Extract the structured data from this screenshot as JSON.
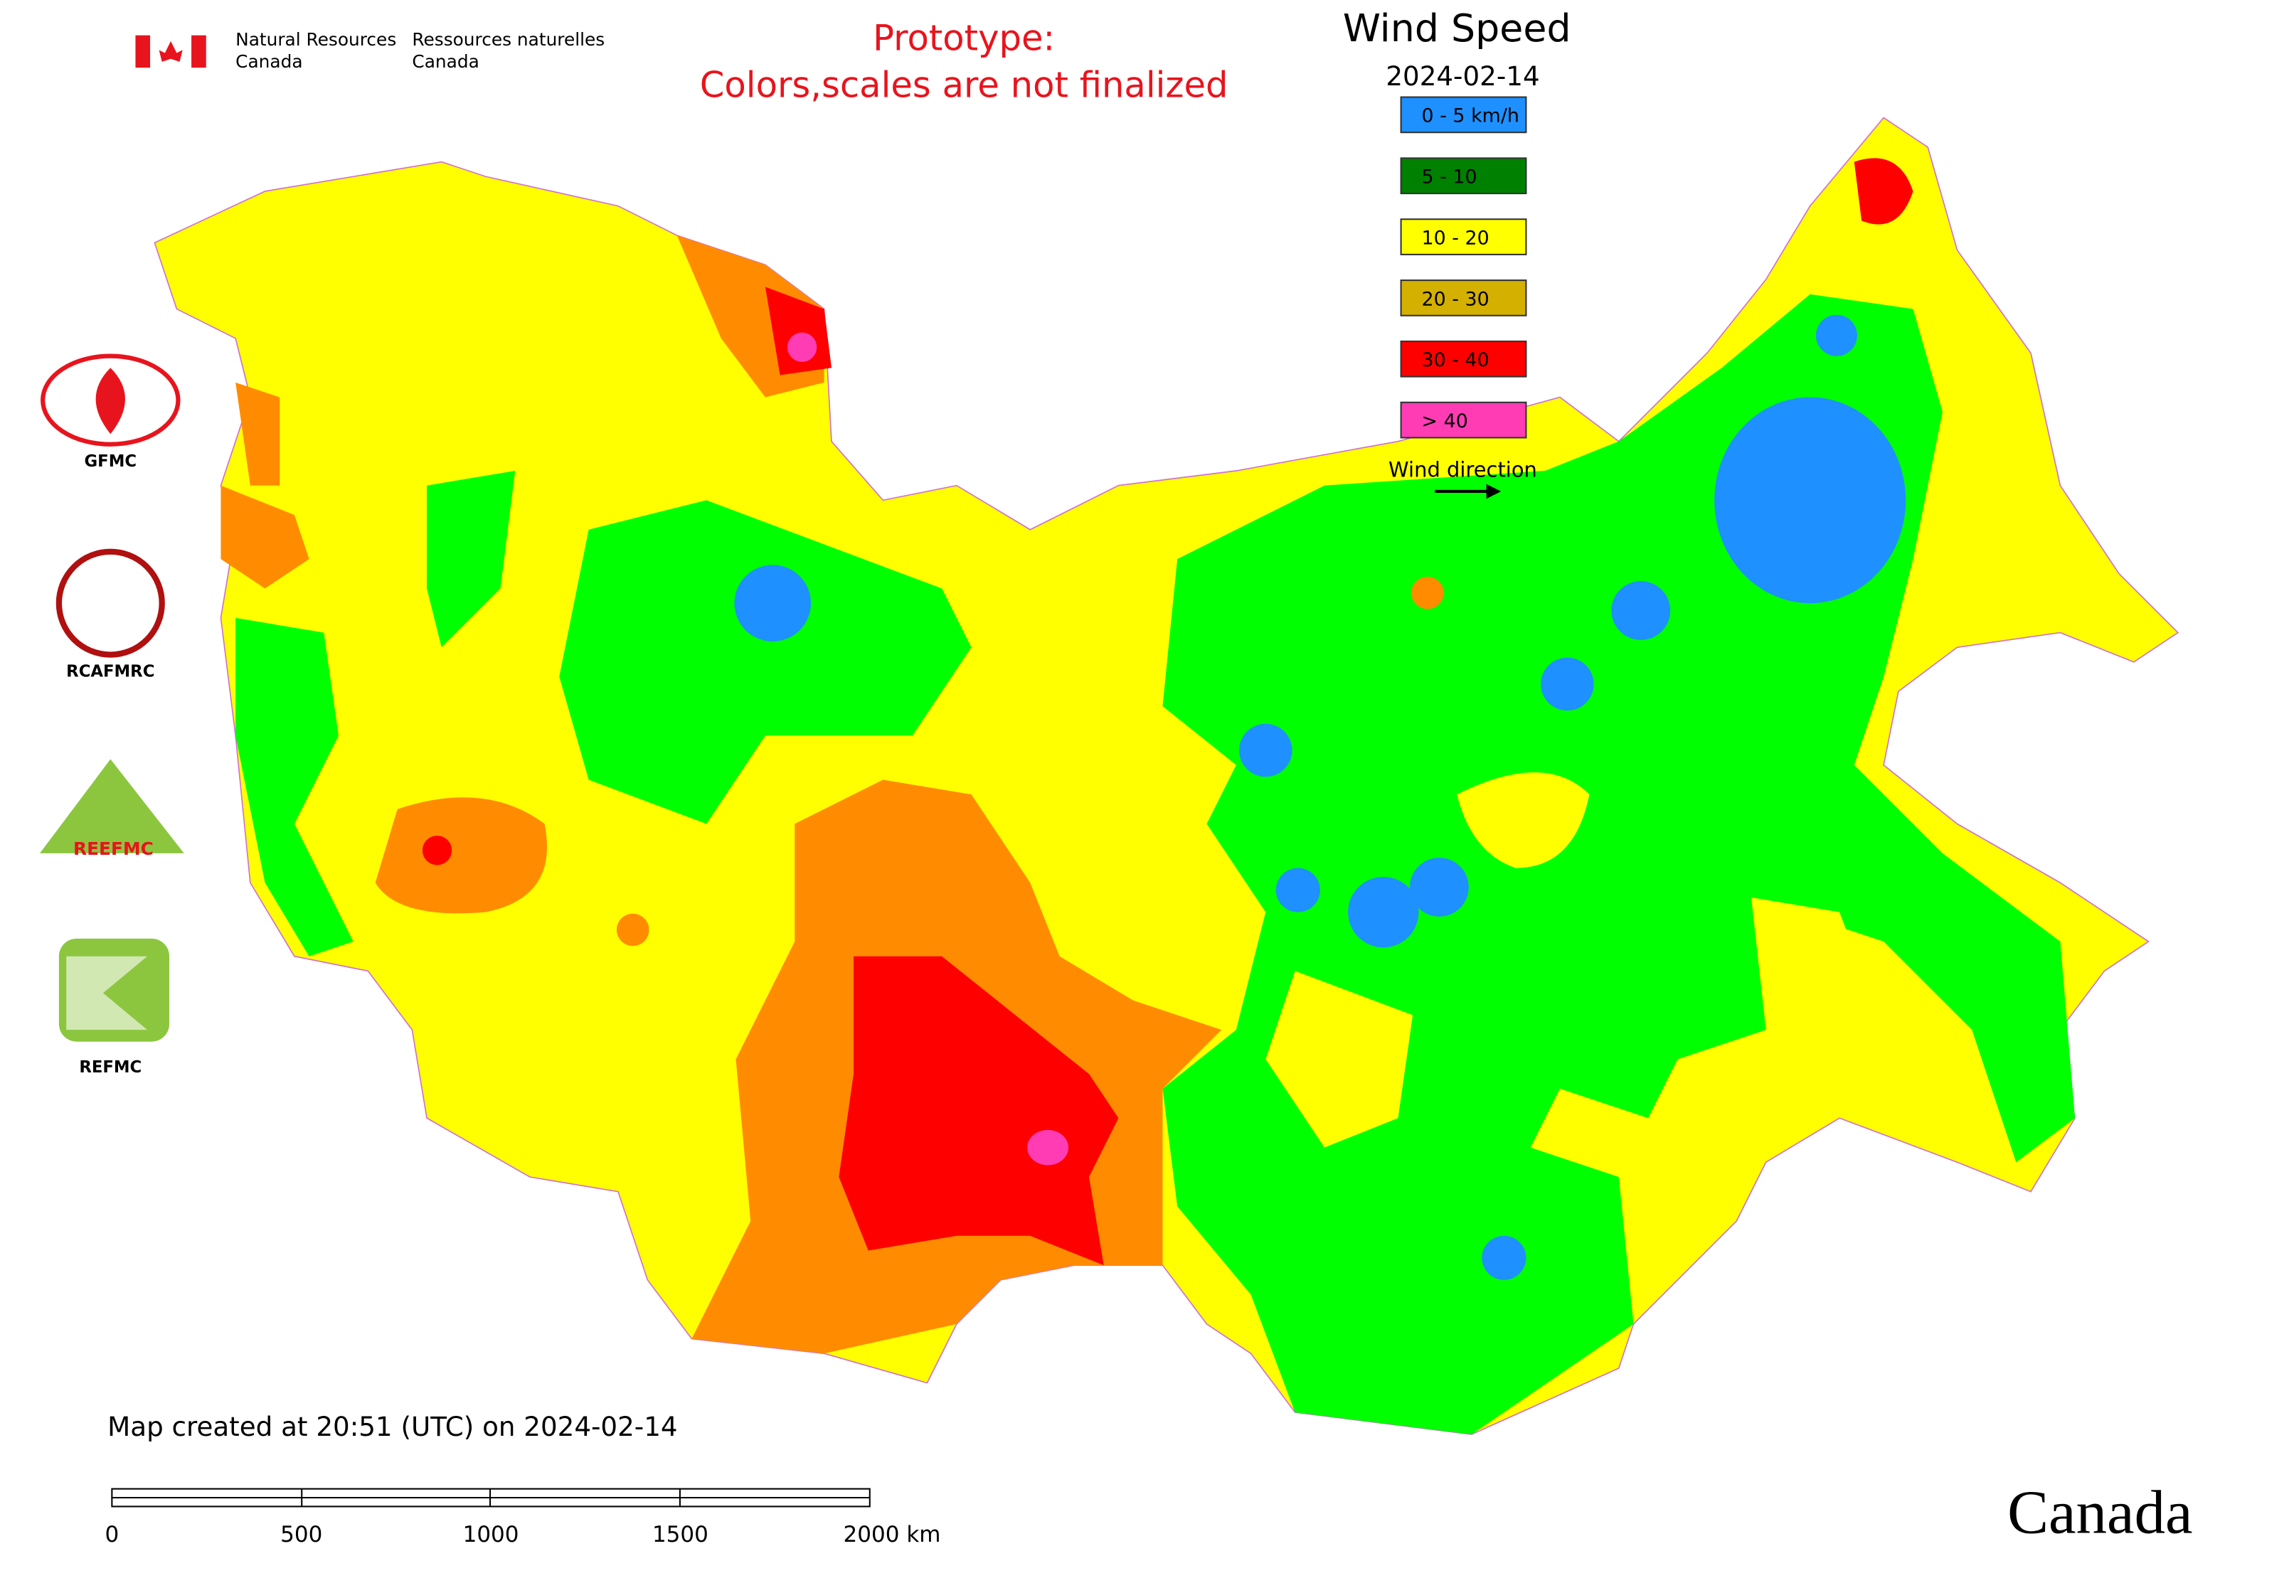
{
  "header": {
    "org_en_1": "Natural Resources",
    "org_en_2": "Canada",
    "org_fr_1": "Ressources naturelles",
    "org_fr_2": "Canada",
    "notice_1": "Prototype:",
    "notice_2": "Colors,scales are not finalized"
  },
  "title": "Wind Speed",
  "date": "2024-02-14",
  "legend": {
    "items": [
      {
        "label": "0 - 5 km/h",
        "color": "#1e90ff"
      },
      {
        "label": "5 - 10",
        "color": "#008000"
      },
      {
        "label": "10 - 20",
        "color": "#ffff00"
      },
      {
        "label": "20 - 30",
        "color": "#d4b000"
      },
      {
        "label": "30 - 40",
        "color": "#ff0000"
      },
      {
        "label": "> 40",
        "color": "#ff3cb4"
      }
    ],
    "direction": "Wind direction"
  },
  "logos": [
    "GFMC",
    "RCAFMRC",
    "REEFMC",
    "REFMC"
  ],
  "footer": {
    "created": "Map created at 20:51 (UTC) on 2024-02-14",
    "scale": [
      "0",
      "500",
      "1000",
      "1500",
      "2000 km"
    ],
    "wordmark": "Canada"
  }
}
